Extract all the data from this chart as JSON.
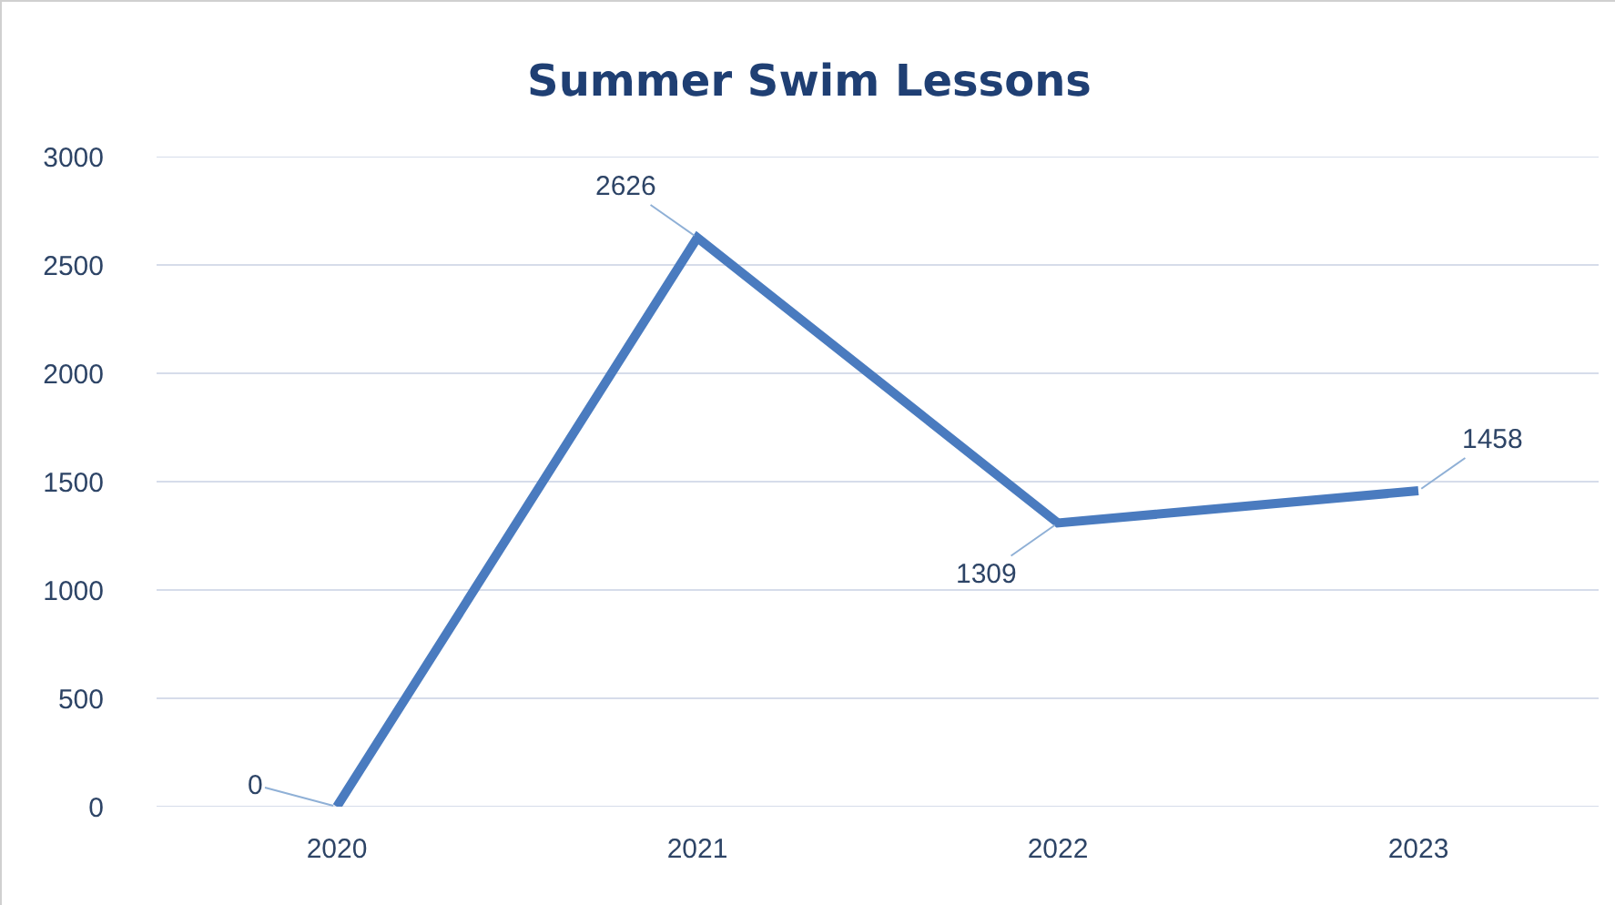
{
  "chart_data": {
    "type": "line",
    "title": "Summer Swim Lessons",
    "categories": [
      "2020",
      "2021",
      "2022",
      "2023"
    ],
    "series": [
      {
        "color": "#4a7bbf",
        "values": [
          0,
          2626,
          1309,
          1458
        ]
      }
    ],
    "ylim": [
      0,
      3000
    ],
    "yticks": [
      0,
      500,
      1000,
      1500,
      2000,
      2500,
      3000
    ],
    "grid": "y",
    "marker": "none",
    "line_style": "solid",
    "data_labels": true
  }
}
